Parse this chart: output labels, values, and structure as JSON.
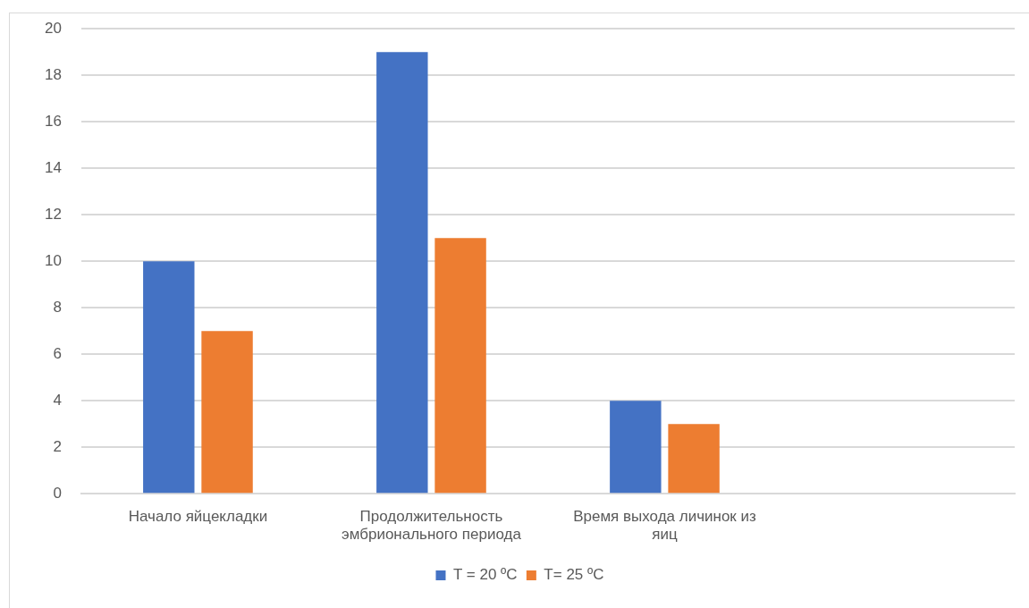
{
  "chart_data": {
    "type": "bar",
    "categories": [
      "Начало яйцекладки",
      "Продолжительность эмбрионального периода",
      "Время выхода личинок из яиц",
      null
    ],
    "series": [
      {
        "name": "T = 20 ºC",
        "color": "#4472c4",
        "values": [
          10,
          19,
          4,
          null
        ]
      },
      {
        "name": "T= 25 ºC",
        "color": "#ed7d31",
        "values": [
          7,
          11,
          3,
          null
        ]
      }
    ],
    "ylim": [
      0,
      20
    ],
    "yticks": [
      0,
      2,
      4,
      6,
      8,
      10,
      12,
      14,
      16,
      18,
      20
    ],
    "grid": "y",
    "legend": "bottom"
  }
}
